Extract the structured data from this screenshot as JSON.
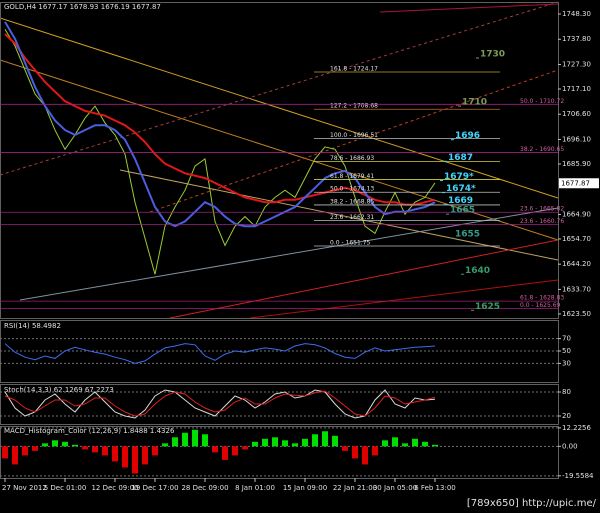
{
  "chart_data": [
    {
      "type": "line",
      "title": "GOLD,H4 1677.17 1678.93 1676.19 1677.87",
      "categories": [
        "27 Nov 2012",
        null,
        null,
        null,
        null,
        null,
        "5 Dec 01:00",
        null,
        null,
        null,
        null,
        "12 Dec 09:00",
        null,
        null,
        null,
        "19 Dec 17:00",
        null,
        null,
        null,
        null,
        "28 Dec 09:00",
        null,
        null,
        null,
        null,
        "8 Jan 01:00",
        null,
        null,
        null,
        null,
        "15 Jan 09:00",
        null,
        null,
        null,
        null,
        "22 Jan 21:00",
        null,
        null,
        null,
        "30 Jan 05:00",
        null,
        null,
        null,
        "6 Feb 13:00"
      ],
      "series": [
        {
          "color": "#9acd32",
          "values": [
            1742,
            1735,
            1725,
            1715,
            1710,
            1700,
            1692,
            1698,
            1705,
            1710,
            1703,
            1698,
            1690,
            1670,
            1655,
            1640,
            1660,
            1668,
            1675,
            1685,
            1688,
            1662,
            1652,
            1660,
            1664,
            1660,
            1668,
            1672,
            1675,
            1672,
            1680,
            1688,
            1693,
            1692,
            1685,
            1672,
            1660,
            1657,
            1666,
            1674,
            1665,
            1670,
            1672,
            1678
          ]
        },
        {
          "color": "#e01818",
          "values": [
            1740,
            1736,
            1730,
            1725,
            1720,
            1716,
            1712,
            1710,
            1708,
            1707,
            1706,
            1704,
            1702,
            1699,
            1695,
            1690,
            1686,
            1684,
            1682,
            1681,
            1680,
            1678,
            1676,
            1674,
            1672,
            1671,
            1670,
            1670,
            1671,
            1671,
            1672,
            1673,
            1674,
            1675,
            1676,
            1675,
            1673,
            1671,
            1670,
            1670,
            1669,
            1669,
            1670,
            1671
          ]
        },
        {
          "color": "#4a5ee0",
          "values": [
            1745,
            1738,
            1728,
            1718,
            1710,
            1704,
            1700,
            1698,
            1700,
            1702,
            1702,
            1700,
            1696,
            1688,
            1678,
            1668,
            1662,
            1660,
            1662,
            1666,
            1670,
            1668,
            1664,
            1661,
            1660,
            1660,
            1662,
            1664,
            1666,
            1668,
            1672,
            1676,
            1680,
            1682,
            1683,
            1680,
            1674,
            1668,
            1665,
            1666,
            1666,
            1667,
            1668,
            1670
          ]
        }
      ],
      "last_price": 1677.87,
      "ylim": [
        1621.8,
        1753.3
      ],
      "yticks": [
        {
          "value": 1748.3,
          "label": "1748.30"
        },
        {
          "value": 1737.8,
          "label": "1737.80"
        },
        {
          "value": 1727.3,
          "label": "1727.30"
        },
        {
          "value": 1717.1,
          "label": "1717.10"
        },
        {
          "value": 1706.6,
          "label": "1706.60"
        },
        {
          "value": 1696.1,
          "label": "1696.10"
        },
        {
          "value": 1685.9,
          "label": "1685.90"
        },
        {
          "value": 1664.9,
          "label": "1664.90"
        },
        {
          "value": 1654.7,
          "label": "1654.70"
        },
        {
          "value": 1644.2,
          "label": "1644.20"
        },
        {
          "value": 1633.7,
          "label": "1633.70"
        },
        {
          "value": 1623.5,
          "label": "1623.50"
        }
      ],
      "fib_levels_a": [
        {
          "label": "161.8 - 1724.17",
          "value": 1724.17
        },
        {
          "label": "127.2 - 1708.68",
          "value": 1708.68
        },
        {
          "label": "100.0 - 1696.51",
          "value": 1696.51
        },
        {
          "label": "78.6 - 1686.93",
          "value": 1686.93
        },
        {
          "label": "61.8 - 1679.41",
          "value": 1679.41
        },
        {
          "label": "50.0 - 1674.13",
          "value": 1674.13
        },
        {
          "label": "38.2 - 1668.85",
          "value": 1668.85
        },
        {
          "label": "23.6 - 1662.31",
          "value": 1662.31
        },
        {
          "label": "0.0 - 1651.75",
          "value": 1651.75
        }
      ],
      "fib_levels_b": [
        {
          "label": "50.0 - 1710.72",
          "value": 1710.72
        },
        {
          "label": "38.2 - 1690.65",
          "value": 1690.65
        },
        {
          "label": "23.6 - 1665.82",
          "value": 1665.82
        },
        {
          "label": "23.6 - 1660.76",
          "value": 1660.76
        },
        {
          "label": "61.8 - 1628.83",
          "value": 1628.83
        },
        {
          "label": "0.0 - 1625.69",
          "value": 1625.69
        }
      ],
      "level_marks": [
        1730,
        1710,
        1696,
        1687,
        {
          "value": 1679,
          "label": "1679*"
        },
        {
          "value": 1674,
          "label": "1674*"
        },
        1669,
        1665,
        1655,
        1640,
        1625
      ]
    },
    {
      "type": "line",
      "title": "RSI(14) 58.4982",
      "series": [
        {
          "color": "#3c6cf0",
          "values": [
            62,
            48,
            40,
            36,
            42,
            38,
            50,
            56,
            52,
            48,
            45,
            40,
            36,
            30,
            34,
            45,
            55,
            58,
            62,
            60,
            42,
            35,
            45,
            50,
            48,
            52,
            55,
            53,
            50,
            58,
            62,
            60,
            55,
            46,
            40,
            38,
            48,
            55,
            50,
            52,
            54,
            56,
            57,
            58
          ]
        }
      ],
      "ylim": [
        0,
        100
      ],
      "yticks": [
        70,
        50,
        30
      ]
    },
    {
      "type": "line",
      "title": "Stoch(14,3,3) 62.1269 67.2273",
      "series": [
        {
          "color": "#d8d8d8",
          "values": [
            80,
            40,
            20,
            30,
            60,
            75,
            50,
            30,
            60,
            80,
            55,
            30,
            20,
            15,
            35,
            70,
            85,
            80,
            60,
            40,
            30,
            20,
            45,
            70,
            60,
            40,
            55,
            75,
            80,
            65,
            70,
            85,
            80,
            50,
            25,
            15,
            20,
            60,
            85,
            50,
            40,
            65,
            60,
            62
          ]
        },
        {
          "color": "#e02020",
          "values": [
            70,
            60,
            40,
            30,
            45,
            60,
            60,
            45,
            50,
            65,
            65,
            45,
            30,
            20,
            25,
            50,
            70,
            80,
            75,
            55,
            40,
            30,
            35,
            55,
            65,
            50,
            50,
            65,
            75,
            72,
            70,
            78,
            82,
            65,
            45,
            25,
            20,
            40,
            70,
            65,
            50,
            55,
            60,
            67
          ]
        }
      ],
      "ylim": [
        0,
        100
      ],
      "yticks": [
        80,
        20
      ]
    },
    {
      "type": "bar",
      "title": "MACD_Histogram_Color (12,26,9) 1.8488 1.4326",
      "values": [
        -8,
        -12,
        -6,
        -3,
        2,
        4,
        3,
        1,
        -2,
        -4,
        -6,
        -10,
        -14,
        -18,
        -12,
        -6,
        2,
        6,
        9,
        11,
        8,
        -4,
        -9,
        -6,
        -2,
        3,
        5,
        6,
        4,
        2,
        5,
        8,
        10,
        7,
        -3,
        -8,
        -12,
        -6,
        4,
        6,
        2,
        5,
        3,
        1
      ],
      "positive_color": "#00e000",
      "negative_color": "#e00000",
      "ylim": [
        -21,
        13.5
      ],
      "yticks": [
        12.2256,
        {
          "value": 0,
          "label": "0.00"
        },
        -19.5584
      ]
    }
  ],
  "footer": "[789x650] http://upic.me/"
}
